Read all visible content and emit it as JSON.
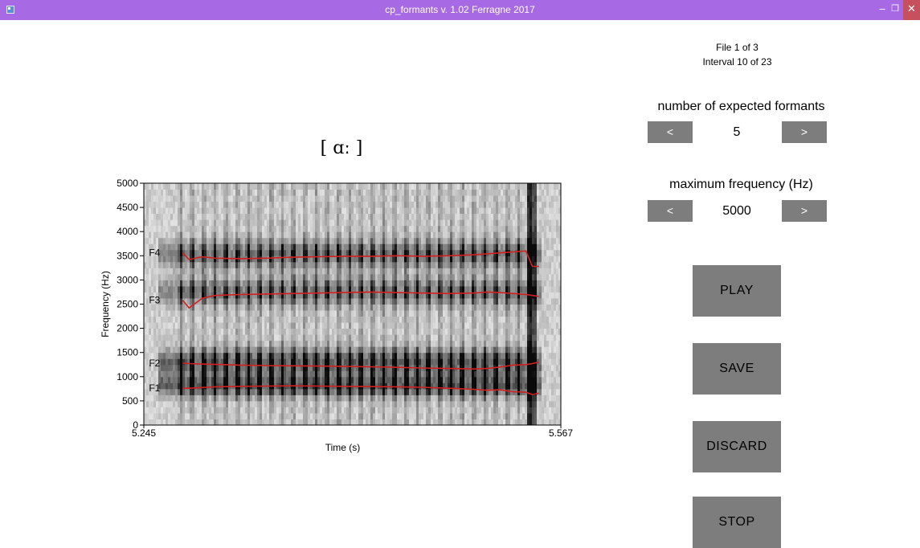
{
  "window": {
    "title": "cp_formants v. 1.02 Ferragne 2017",
    "controls": [
      "–",
      "❐",
      "✕"
    ]
  },
  "status": {
    "file": "File 1 of 3",
    "interval": "Interval 10 of 23"
  },
  "formants_control": {
    "label": "number of expected formants",
    "prev": "<",
    "value": "5",
    "next": ">"
  },
  "maxfreq_control": {
    "label": "maximum frequency (Hz)",
    "prev": "<",
    "value": "5000",
    "next": ">"
  },
  "actions": {
    "play": "PLAY",
    "save": "SAVE",
    "discard": "DISCARD",
    "stop": "STOP"
  },
  "vowel_label": "[ ɑː ]",
  "chart_data": {
    "type": "line",
    "title": "",
    "xlabel": "Time (s)",
    "ylabel": "Frequency (Hz)",
    "xlim": [
      5.245,
      5.567
    ],
    "ylim": [
      0,
      5000
    ],
    "xticks": [
      "5.245",
      "5.567"
    ],
    "yticks": [
      "0",
      "500",
      "1000",
      "1500",
      "2000",
      "2500",
      "3000",
      "3500",
      "4000",
      "4500",
      "5000"
    ],
    "background": "spectrogram",
    "line_color": "#d42020",
    "x": [
      5.275,
      5.28,
      5.29,
      5.3,
      5.32,
      5.34,
      5.36,
      5.38,
      5.4,
      5.42,
      5.44,
      5.46,
      5.48,
      5.5,
      5.51,
      5.52,
      5.53,
      5.54,
      5.545,
      5.55
    ],
    "series": [
      {
        "name": "F1",
        "values": [
          760,
          760,
          775,
          790,
          800,
          805,
          810,
          805,
          800,
          795,
          790,
          780,
          760,
          740,
          720,
          730,
          690,
          680,
          630,
          660
        ]
      },
      {
        "name": "F2",
        "values": [
          1280,
          1270,
          1260,
          1255,
          1240,
          1230,
          1225,
          1220,
          1215,
          1205,
          1195,
          1180,
          1170,
          1160,
          1170,
          1200,
          1240,
          1250,
          1270,
          1300
        ]
      },
      {
        "name": "F3",
        "values": [
          2580,
          2420,
          2620,
          2680,
          2700,
          2710,
          2720,
          2730,
          2740,
          2750,
          2740,
          2730,
          2720,
          2730,
          2750,
          2740,
          2720,
          2700,
          2680,
          2660
        ]
      },
      {
        "name": "F4",
        "values": [
          3560,
          3420,
          3480,
          3450,
          3440,
          3450,
          3470,
          3480,
          3490,
          3490,
          3500,
          3490,
          3500,
          3520,
          3540,
          3560,
          3580,
          3600,
          3280,
          3280
        ]
      }
    ]
  }
}
